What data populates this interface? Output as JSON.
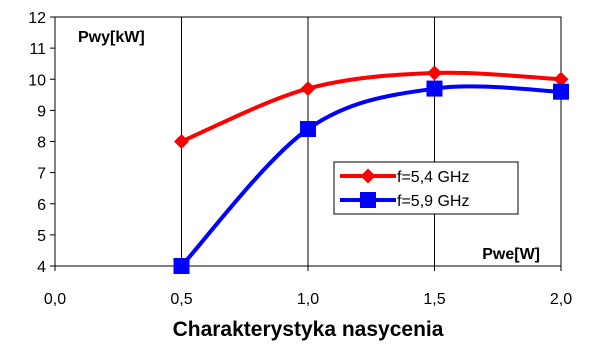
{
  "chart_data": {
    "type": "line",
    "title": "Charakterystyka nasycenia",
    "ylabel": "Pwy[kW]",
    "xlabel": "Pwe[W]",
    "xlim": [
      0,
      2
    ],
    "ylim": [
      4,
      12
    ],
    "x_ticks": [
      "0,0",
      "0,5",
      "1,0",
      "1,5",
      "2,0"
    ],
    "y_ticks": [
      "4",
      "5",
      "6",
      "7",
      "8",
      "9",
      "10",
      "11",
      "12"
    ],
    "grid": "vertical",
    "legend_position": "right",
    "series": [
      {
        "name": "f=5,4 GHz",
        "color": "#ff0000",
        "marker": "diamond",
        "smooth": true,
        "points": [
          [
            0.5,
            8.0
          ],
          [
            1.0,
            9.7
          ],
          [
            1.5,
            10.2
          ],
          [
            2.0,
            10.0
          ]
        ]
      },
      {
        "name": "f=5,9 GHz",
        "color": "#0000ff",
        "marker": "square",
        "smooth": true,
        "points": [
          [
            0.5,
            4.0
          ],
          [
            1.0,
            8.4
          ],
          [
            1.5,
            9.7
          ],
          [
            2.0,
            9.6
          ]
        ]
      }
    ]
  }
}
